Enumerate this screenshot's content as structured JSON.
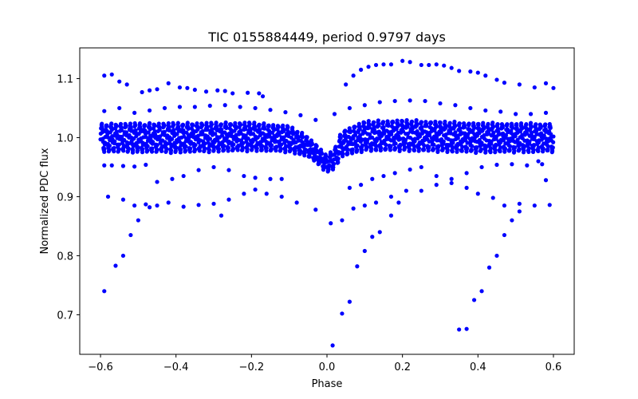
{
  "chart_data": {
    "type": "scatter",
    "title": "TIC 0155884449, period 0.9797 days",
    "xlabel": "Phase",
    "ylabel": "Normalized PDC flux",
    "xlim": [
      -0.655,
      0.655
    ],
    "ylim": [
      0.633,
      1.152
    ],
    "xticks": [
      -0.6,
      -0.4,
      -0.2,
      0.0,
      0.2,
      0.4,
      0.6
    ],
    "xtick_labels": [
      "−0.6",
      "−0.4",
      "−0.2",
      "0.0",
      "0.2",
      "0.4",
      "0.6"
    ],
    "yticks": [
      0.7,
      0.8,
      0.9,
      1.0,
      1.1
    ],
    "ytick_labels": [
      "0.7",
      "0.8",
      "0.9",
      "1.0",
      "1.1"
    ],
    "grid": false,
    "legend": "none",
    "marker_color": "#0000ff",
    "outlier_points": [
      {
        "x": -0.59,
        "y": 1.105
      },
      {
        "x": -0.57,
        "y": 1.107
      },
      {
        "x": -0.55,
        "y": 1.095
      },
      {
        "x": -0.53,
        "y": 1.09
      },
      {
        "x": -0.49,
        "y": 1.077
      },
      {
        "x": -0.47,
        "y": 1.08
      },
      {
        "x": -0.45,
        "y": 1.082
      },
      {
        "x": -0.42,
        "y": 1.092
      },
      {
        "x": -0.39,
        "y": 1.085
      },
      {
        "x": -0.37,
        "y": 1.084
      },
      {
        "x": -0.35,
        "y": 1.081
      },
      {
        "x": -0.32,
        "y": 1.078
      },
      {
        "x": -0.29,
        "y": 1.08
      },
      {
        "x": -0.27,
        "y": 1.079
      },
      {
        "x": -0.25,
        "y": 1.075
      },
      {
        "x": -0.21,
        "y": 1.076
      },
      {
        "x": -0.18,
        "y": 1.075
      },
      {
        "x": -0.17,
        "y": 1.07
      },
      {
        "x": 0.05,
        "y": 1.09
      },
      {
        "x": 0.07,
        "y": 1.105
      },
      {
        "x": 0.09,
        "y": 1.115
      },
      {
        "x": 0.11,
        "y": 1.12
      },
      {
        "x": 0.13,
        "y": 1.123
      },
      {
        "x": 0.15,
        "y": 1.124
      },
      {
        "x": 0.17,
        "y": 1.124
      },
      {
        "x": 0.2,
        "y": 1.13
      },
      {
        "x": 0.22,
        "y": 1.128
      },
      {
        "x": 0.25,
        "y": 1.123
      },
      {
        "x": 0.27,
        "y": 1.123
      },
      {
        "x": 0.29,
        "y": 1.124
      },
      {
        "x": 0.31,
        "y": 1.122
      },
      {
        "x": 0.33,
        "y": 1.118
      },
      {
        "x": 0.35,
        "y": 1.113
      },
      {
        "x": 0.38,
        "y": 1.112
      },
      {
        "x": 0.4,
        "y": 1.11
      },
      {
        "x": 0.42,
        "y": 1.105
      },
      {
        "x": 0.45,
        "y": 1.098
      },
      {
        "x": 0.47,
        "y": 1.093
      },
      {
        "x": 0.51,
        "y": 1.09
      },
      {
        "x": 0.55,
        "y": 1.085
      },
      {
        "x": 0.58,
        "y": 1.092
      },
      {
        "x": 0.6,
        "y": 1.084
      },
      {
        "x": -0.59,
        "y": 1.045
      },
      {
        "x": -0.55,
        "y": 1.05
      },
      {
        "x": -0.51,
        "y": 1.042
      },
      {
        "x": -0.47,
        "y": 1.046
      },
      {
        "x": -0.43,
        "y": 1.05
      },
      {
        "x": -0.39,
        "y": 1.052
      },
      {
        "x": -0.35,
        "y": 1.052
      },
      {
        "x": -0.31,
        "y": 1.054
      },
      {
        "x": -0.27,
        "y": 1.055
      },
      {
        "x": -0.23,
        "y": 1.052
      },
      {
        "x": -0.19,
        "y": 1.05
      },
      {
        "x": -0.15,
        "y": 1.047
      },
      {
        "x": -0.11,
        "y": 1.043
      },
      {
        "x": -0.07,
        "y": 1.038
      },
      {
        "x": -0.03,
        "y": 1.03
      },
      {
        "x": 0.02,
        "y": 1.04
      },
      {
        "x": 0.06,
        "y": 1.05
      },
      {
        "x": 0.1,
        "y": 1.055
      },
      {
        "x": 0.14,
        "y": 1.06
      },
      {
        "x": 0.18,
        "y": 1.062
      },
      {
        "x": 0.22,
        "y": 1.063
      },
      {
        "x": 0.26,
        "y": 1.062
      },
      {
        "x": 0.3,
        "y": 1.058
      },
      {
        "x": 0.34,
        "y": 1.055
      },
      {
        "x": 0.38,
        "y": 1.05
      },
      {
        "x": 0.42,
        "y": 1.046
      },
      {
        "x": 0.46,
        "y": 1.044
      },
      {
        "x": 0.5,
        "y": 1.04
      },
      {
        "x": 0.54,
        "y": 1.04
      },
      {
        "x": 0.58,
        "y": 1.042
      },
      {
        "x": -0.59,
        "y": 0.953
      },
      {
        "x": -0.57,
        "y": 0.953
      },
      {
        "x": -0.54,
        "y": 0.952
      },
      {
        "x": -0.51,
        "y": 0.951
      },
      {
        "x": -0.48,
        "y": 0.954
      },
      {
        "x": -0.45,
        "y": 0.925
      },
      {
        "x": -0.41,
        "y": 0.93
      },
      {
        "x": -0.38,
        "y": 0.935
      },
      {
        "x": -0.34,
        "y": 0.945
      },
      {
        "x": -0.3,
        "y": 0.95
      },
      {
        "x": -0.26,
        "y": 0.945
      },
      {
        "x": -0.22,
        "y": 0.935
      },
      {
        "x": -0.19,
        "y": 0.932
      },
      {
        "x": -0.15,
        "y": 0.93
      },
      {
        "x": -0.12,
        "y": 0.93
      },
      {
        "x": 0.06,
        "y": 0.915
      },
      {
        "x": 0.09,
        "y": 0.92
      },
      {
        "x": 0.12,
        "y": 0.93
      },
      {
        "x": 0.15,
        "y": 0.935
      },
      {
        "x": 0.18,
        "y": 0.94
      },
      {
        "x": 0.22,
        "y": 0.946
      },
      {
        "x": 0.25,
        "y": 0.95
      },
      {
        "x": 0.29,
        "y": 0.935
      },
      {
        "x": 0.33,
        "y": 0.93
      },
      {
        "x": 0.37,
        "y": 0.94
      },
      {
        "x": 0.41,
        "y": 0.95
      },
      {
        "x": 0.45,
        "y": 0.954
      },
      {
        "x": 0.49,
        "y": 0.955
      },
      {
        "x": 0.53,
        "y": 0.953
      },
      {
        "x": 0.57,
        "y": 0.955
      },
      {
        "x": -0.58,
        "y": 0.9
      },
      {
        "x": -0.54,
        "y": 0.895
      },
      {
        "x": -0.51,
        "y": 0.885
      },
      {
        "x": -0.48,
        "y": 0.887
      },
      {
        "x": -0.45,
        "y": 0.885
      },
      {
        "x": -0.42,
        "y": 0.89
      },
      {
        "x": -0.38,
        "y": 0.883
      },
      {
        "x": -0.34,
        "y": 0.886
      },
      {
        "x": -0.3,
        "y": 0.888
      },
      {
        "x": -0.26,
        "y": 0.895
      },
      {
        "x": -0.22,
        "y": 0.905
      },
      {
        "x": -0.19,
        "y": 0.912
      },
      {
        "x": -0.16,
        "y": 0.905
      },
      {
        "x": -0.12,
        "y": 0.9
      },
      {
        "x": -0.08,
        "y": 0.89
      },
      {
        "x": -0.03,
        "y": 0.878
      },
      {
        "x": 0.01,
        "y": 0.855
      },
      {
        "x": 0.04,
        "y": 0.86
      },
      {
        "x": 0.07,
        "y": 0.88
      },
      {
        "x": 0.1,
        "y": 0.885
      },
      {
        "x": 0.13,
        "y": 0.89
      },
      {
        "x": 0.17,
        "y": 0.9
      },
      {
        "x": 0.21,
        "y": 0.91
      },
      {
        "x": 0.25,
        "y": 0.91
      },
      {
        "x": 0.29,
        "y": 0.92
      },
      {
        "x": 0.33,
        "y": 0.923
      },
      {
        "x": 0.37,
        "y": 0.915
      },
      {
        "x": 0.4,
        "y": 0.905
      },
      {
        "x": 0.44,
        "y": 0.898
      },
      {
        "x": 0.47,
        "y": 0.885
      },
      {
        "x": 0.51,
        "y": 0.888
      },
      {
        "x": 0.55,
        "y": 0.885
      },
      {
        "x": 0.59,
        "y": 0.886
      },
      {
        "x": -0.59,
        "y": 0.74
      },
      {
        "x": -0.56,
        "y": 0.783
      },
      {
        "x": -0.54,
        "y": 0.8
      },
      {
        "x": -0.52,
        "y": 0.835
      },
      {
        "x": -0.5,
        "y": 0.86
      },
      {
        "x": -0.47,
        "y": 0.882
      },
      {
        "x": 0.015,
        "y": 0.648
      },
      {
        "x": 0.04,
        "y": 0.702
      },
      {
        "x": 0.06,
        "y": 0.722
      },
      {
        "x": 0.08,
        "y": 0.782
      },
      {
        "x": 0.1,
        "y": 0.808
      },
      {
        "x": 0.12,
        "y": 0.832
      },
      {
        "x": 0.14,
        "y": 0.84
      },
      {
        "x": 0.17,
        "y": 0.868
      },
      {
        "x": 0.19,
        "y": 0.89
      },
      {
        "x": 0.35,
        "y": 0.675
      },
      {
        "x": 0.37,
        "y": 0.676
      },
      {
        "x": 0.39,
        "y": 0.725
      },
      {
        "x": 0.41,
        "y": 0.74
      },
      {
        "x": 0.43,
        "y": 0.78
      },
      {
        "x": 0.45,
        "y": 0.8
      },
      {
        "x": 0.47,
        "y": 0.835
      },
      {
        "x": 0.49,
        "y": 0.86
      },
      {
        "x": 0.51,
        "y": 0.875
      },
      {
        "x": 0.58,
        "y": 0.928
      },
      {
        "x": -0.28,
        "y": 0.868
      },
      {
        "x": 0.56,
        "y": 0.96
      }
    ],
    "band": {
      "x_start": -0.6,
      "x_end": 0.6,
      "samples": 1700,
      "oscillation_cycles": 95,
      "envelope": [
        {
          "x": -0.6,
          "center": 1.0,
          "half_amplitude": 0.022
        },
        {
          "x": -0.4,
          "center": 1.0,
          "half_amplitude": 0.023
        },
        {
          "x": -0.2,
          "center": 1.002,
          "half_amplitude": 0.022
        },
        {
          "x": -0.1,
          "center": 0.998,
          "half_amplitude": 0.02
        },
        {
          "x": -0.05,
          "center": 0.985,
          "half_amplitude": 0.015
        },
        {
          "x": -0.02,
          "center": 0.968,
          "half_amplitude": 0.013
        },
        {
          "x": 0.0,
          "center": 0.955,
          "half_amplitude": 0.012
        },
        {
          "x": 0.02,
          "center": 0.965,
          "half_amplitude": 0.015
        },
        {
          "x": 0.04,
          "center": 0.99,
          "half_amplitude": 0.02
        },
        {
          "x": 0.1,
          "center": 1.003,
          "half_amplitude": 0.023
        },
        {
          "x": 0.2,
          "center": 1.004,
          "half_amplitude": 0.024
        },
        {
          "x": 0.4,
          "center": 1.0,
          "half_amplitude": 0.023
        },
        {
          "x": 0.6,
          "center": 1.0,
          "half_amplitude": 0.022
        }
      ]
    }
  }
}
